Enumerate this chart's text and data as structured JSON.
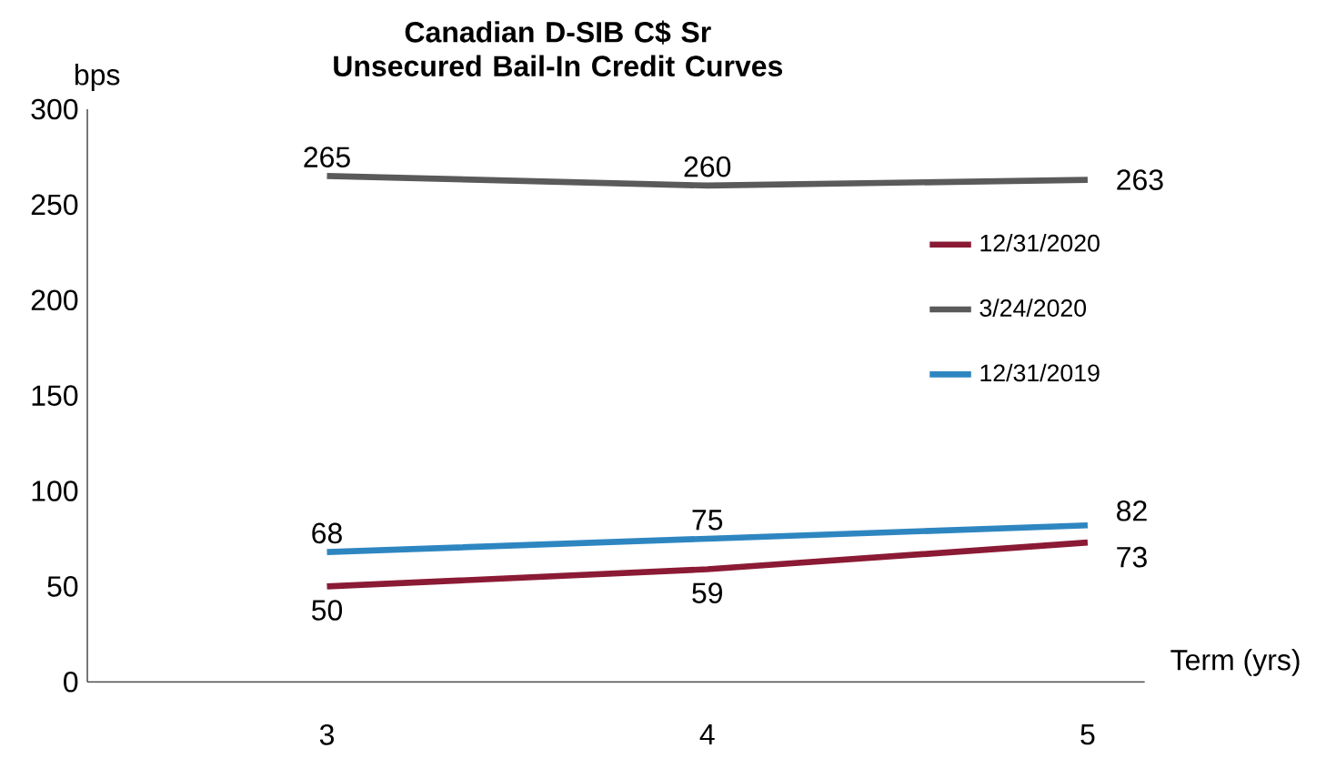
{
  "chart_data": {
    "type": "line",
    "title": "Canadian D-SIB C$ Sr Unsecured Bail-In Credit Curves",
    "xlabel": "Term (yrs)",
    "ylabel": "bps",
    "categories": [
      "3",
      "4",
      "5"
    ],
    "series": [
      {
        "name": "12/31/2020",
        "color": "#8b1a35",
        "values": [
          50,
          59,
          73
        ]
      },
      {
        "name": "3/24/2020",
        "color": "#5a5a5a",
        "values": [
          265,
          260,
          263
        ]
      },
      {
        "name": "12/31/2019",
        "color": "#2e86c1",
        "values": [
          68,
          75,
          82
        ]
      }
    ],
    "ylim": [
      0,
      300
    ],
    "yticks": [
      0,
      50,
      100,
      150,
      200,
      250,
      300
    ],
    "grid": false,
    "legend": "right",
    "data_labels": true,
    "marker": "none",
    "line_style": "solid"
  }
}
